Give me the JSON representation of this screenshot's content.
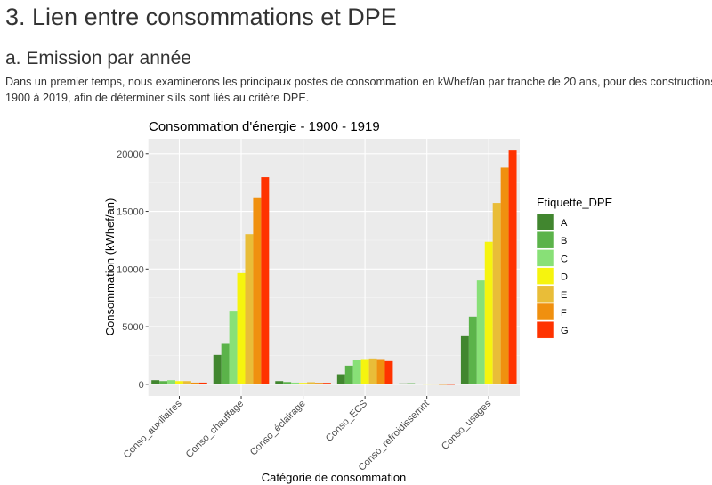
{
  "heading": "3. Lien entre consommations et DPE",
  "subheading": "a. Emission par année",
  "paragraph_line1": "Dans un premier temps, nous examinerons les principaux postes de consommation en kWhef/an par tranche de 20 ans, pour des constructions de",
  "paragraph_line2": "1900 à 2019, afin de déterminer s'ils sont liés au critère DPE.",
  "chart_data": {
    "type": "bar",
    "title": "Consommation d'énergie - 1900 - 1919",
    "xlabel": "Catégorie de consommation",
    "ylabel": "Consommation (kWhef/an)",
    "ylim": [
      -1014,
      21294
    ],
    "yticks": [
      0,
      5000,
      10000,
      15000,
      20000
    ],
    "grid": true,
    "legend_title": "Etiquette_DPE",
    "legend_position": "right",
    "categories": [
      "Conso_auxiliaires",
      "Conso_chauffage",
      "Conso_éclairage",
      "Conso_ECS",
      "Conso_refroidissemnt",
      "Conso_usages"
    ],
    "series": [
      {
        "name": "A",
        "color": "#41862f",
        "values": [
          360,
          2550,
          280,
          875,
          80,
          4170
        ]
      },
      {
        "name": "B",
        "color": "#5bb34a",
        "values": [
          280,
          3580,
          200,
          1620,
          100,
          5870
        ]
      },
      {
        "name": "C",
        "color": "#88e077",
        "values": [
          360,
          6310,
          150,
          2140,
          50,
          9010
        ]
      },
      {
        "name": "D",
        "color": "#f6f40e",
        "values": [
          280,
          9650,
          130,
          2190,
          20,
          12360
        ]
      },
      {
        "name": "E",
        "color": "#e9bd38",
        "values": [
          280,
          13020,
          180,
          2240,
          20,
          15730
        ]
      },
      {
        "name": "F",
        "color": "#f0900f",
        "values": [
          150,
          16220,
          130,
          2190,
          0,
          18790
        ]
      },
      {
        "name": "G",
        "color": "#ff3300",
        "values": [
          150,
          17970,
          130,
          2010,
          0,
          20280
        ]
      }
    ]
  }
}
